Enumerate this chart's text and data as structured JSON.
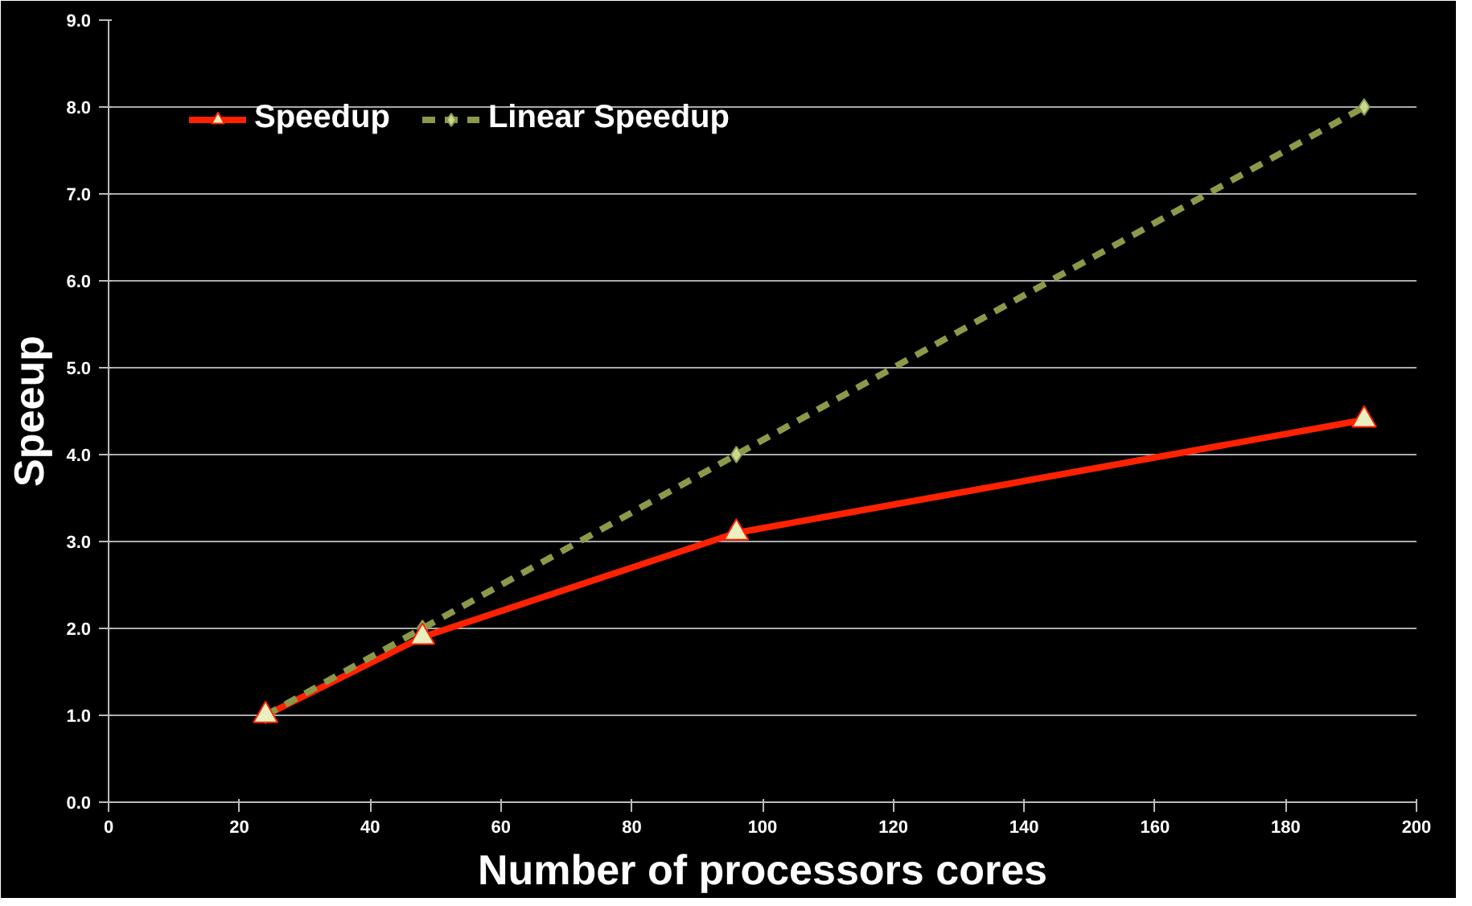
{
  "chart_data": {
    "type": "line",
    "xlabel": "Number of processors cores",
    "ylabel": "Speeup",
    "x": [
      24,
      48,
      96,
      192
    ],
    "series": [
      {
        "name": "Speedup",
        "color": "#ff2200",
        "values": [
          1.0,
          1.9,
          3.1,
          4.4
        ],
        "marker": "triangle",
        "line_style": "solid"
      },
      {
        "name": "Linear Speedup",
        "color": "#8a9a4a",
        "values": [
          1.0,
          2.0,
          4.0,
          8.0
        ],
        "marker": "diamond",
        "line_style": "dashed"
      }
    ],
    "xlim": [
      0,
      200
    ],
    "xticks": [
      0,
      20,
      40,
      60,
      80,
      100,
      120,
      140,
      160,
      180,
      200
    ],
    "ylim": [
      0,
      9
    ],
    "yticks": [
      {
        "value": 0,
        "label": "0.0"
      },
      {
        "value": 1,
        "label": "1.0"
      },
      {
        "value": 2,
        "label": "2.0"
      },
      {
        "value": 3,
        "label": "3.0"
      },
      {
        "value": 4,
        "label": "4.0"
      },
      {
        "value": 5,
        "label": "5.0"
      },
      {
        "value": 6,
        "label": "6.0"
      },
      {
        "value": 7,
        "label": "7.0"
      },
      {
        "value": 8,
        "label": "8.0"
      },
      {
        "value": 9,
        "label": "9.0"
      }
    ],
    "grid": "y",
    "legend": "top left"
  }
}
